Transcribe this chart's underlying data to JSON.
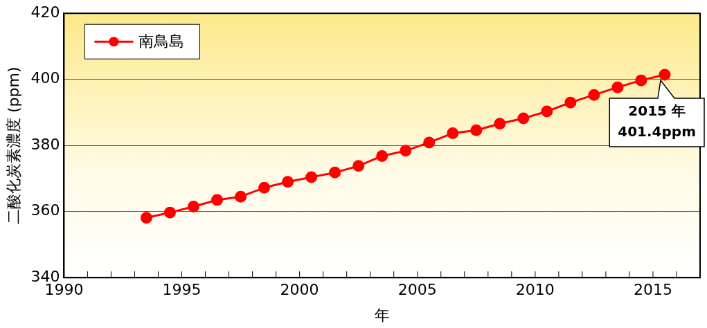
{
  "chart_data": {
    "type": "line",
    "xlabel": "年",
    "ylabel": "二酸化炭素濃度 (ppm)",
    "x": [
      1993.5,
      1994.5,
      1995.5,
      1996.5,
      1997.5,
      1998.5,
      1999.5,
      2000.5,
      2001.5,
      2002.5,
      2003.5,
      2004.5,
      2005.5,
      2006.5,
      2007.5,
      2008.5,
      2009.5,
      2010.5,
      2011.5,
      2012.5,
      2013.5,
      2014.5,
      2015.5
    ],
    "series": [
      {
        "name": "南鳥島",
        "color": "#ff0000",
        "values": [
          358.1,
          359.7,
          361.5,
          363.5,
          364.5,
          367.2,
          369.0,
          370.4,
          371.8,
          373.8,
          376.8,
          378.4,
          380.9,
          383.7,
          384.6,
          386.6,
          388.2,
          390.3,
          393.0,
          395.3,
          397.6,
          399.7,
          401.4
        ]
      }
    ],
    "xlim": [
      1990,
      2017
    ],
    "xticks": [
      1990,
      {
        "value": 1991,
        "label": null
      },
      {
        "value": 1992,
        "label": null
      },
      {
        "value": 1993,
        "label": null
      },
      {
        "value": 1994,
        "label": null
      },
      1995,
      {
        "value": 1996,
        "label": null
      },
      {
        "value": 1997,
        "label": null
      },
      {
        "value": 1998,
        "label": null
      },
      {
        "value": 1999,
        "label": null
      },
      2000,
      {
        "value": 2001,
        "label": null
      },
      {
        "value": 2002,
        "label": null
      },
      {
        "value": 2003,
        "label": null
      },
      {
        "value": 2004,
        "label": null
      },
      2005,
      {
        "value": 2006,
        "label": null
      },
      {
        "value": 2007,
        "label": null
      },
      {
        "value": 2008,
        "label": null
      },
      {
        "value": 2009,
        "label": null
      },
      2010,
      {
        "value": 2011,
        "label": null
      },
      {
        "value": 2012,
        "label": null
      },
      {
        "value": 2013,
        "label": null
      },
      {
        "value": 2014,
        "label": null
      },
      2015,
      {
        "value": 2016,
        "label": null
      }
    ],
    "ylim": [
      340,
      420
    ],
    "yticks": [
      340,
      360,
      380,
      400,
      420
    ],
    "grid": "y",
    "legend": "top left",
    "marker": "circle",
    "line_style": "solid",
    "annotations": [
      {
        "text": "2015 年\n401.4ppm",
        "x": 2015.5,
        "y": 401.4
      }
    ]
  }
}
